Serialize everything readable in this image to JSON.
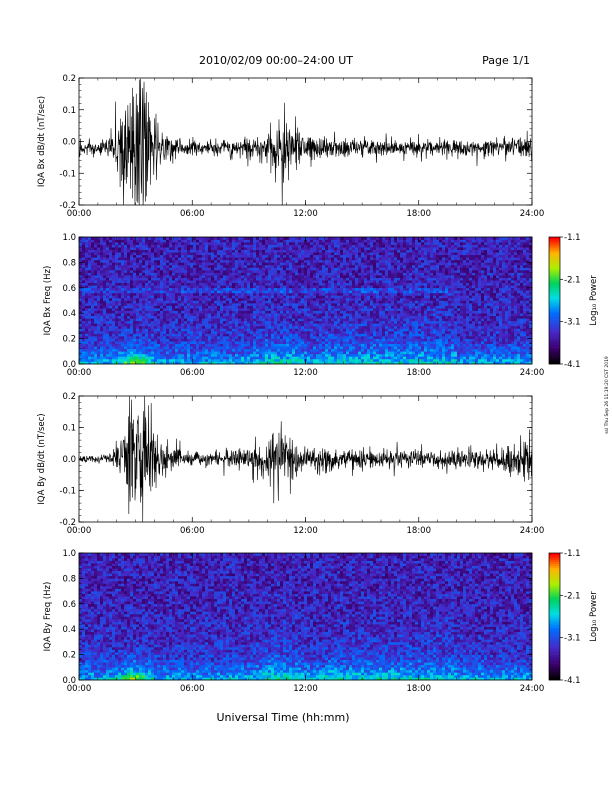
{
  "header": {
    "title": "2010/02/09  00:00–24:00 UT",
    "page": "Page 1/1"
  },
  "footer": {
    "xlabel": "Universal Time (hh:mm)",
    "side_note": "ssl Thu Sep 26 11:19:20 CST 2019"
  },
  "chart_data": [
    {
      "type": "line",
      "id": "bx_dbdt",
      "ylabel": "IQA Bx dB/dt (nT/sec)",
      "xlim": [
        0,
        24
      ],
      "ylim": [
        -0.2,
        0.2
      ],
      "yticks": [
        -0.2,
        -0.1,
        0.0,
        0.1,
        0.2
      ],
      "ytick_labels": [
        "-0.2",
        "-0.1",
        "0.0",
        "0.1",
        "0.2"
      ],
      "xticks": [
        0,
        6,
        12,
        18,
        24
      ],
      "xtick_labels": [
        "00:00",
        "06:00",
        "12:00",
        "18:00",
        "24:00"
      ],
      "series": [
        {
          "color": "#000000",
          "envelope": [
            [
              0,
              0.02
            ],
            [
              1.5,
              0.025
            ],
            [
              2.0,
              0.06
            ],
            [
              2.5,
              0.14
            ],
            [
              2.8,
              0.2
            ],
            [
              3.1,
              0.2
            ],
            [
              3.4,
              0.2
            ],
            [
              3.7,
              0.12
            ],
            [
              4.1,
              0.07
            ],
            [
              4.6,
              0.04
            ],
            [
              5.5,
              0.02
            ],
            [
              7,
              0.02
            ],
            [
              9,
              0.025
            ],
            [
              10.0,
              0.05
            ],
            [
              10.5,
              0.09
            ],
            [
              10.8,
              0.1
            ],
            [
              11.3,
              0.07
            ],
            [
              12,
              0.035
            ],
            [
              14,
              0.025
            ],
            [
              18,
              0.02
            ],
            [
              22,
              0.025
            ],
            [
              23.5,
              0.03
            ],
            [
              24,
              0.045
            ]
          ],
          "offset": -0.02
        }
      ]
    },
    {
      "type": "heatmap",
      "id": "bx_spec",
      "ylabel": "IQA Bx Freq (Hz)",
      "xlim": [
        0,
        24
      ],
      "ylim": [
        0,
        1.0
      ],
      "yticks": [
        0.0,
        0.2,
        0.4,
        0.6,
        0.8,
        1.0
      ],
      "ytick_labels": [
        "0.0",
        "0.2",
        "0.4",
        "0.6",
        "0.8",
        "1.0"
      ],
      "xticks": [
        0,
        6,
        12,
        18,
        24
      ],
      "xtick_labels": [
        "00:00",
        "06:00",
        "12:00",
        "18:00",
        "24:00"
      ],
      "colorbar": {
        "label": "Log₁₀ Power",
        "ticks": [
          -1.1,
          -2.1,
          -3.1,
          -4.1
        ],
        "tick_labels": [
          "-1.1",
          "-2.1",
          "-3.1",
          "-4.1"
        ],
        "range": [
          -4.1,
          -1.1
        ]
      },
      "features": {
        "band_hz": 0.58,
        "burst_hour": 3.0
      }
    },
    {
      "type": "line",
      "id": "by_dbdt",
      "ylabel": "IQA By dB/dt (nT/sec)",
      "xlim": [
        0,
        24
      ],
      "ylim": [
        -0.2,
        0.2
      ],
      "yticks": [
        -0.2,
        -0.1,
        0.0,
        0.1,
        0.2
      ],
      "ytick_labels": [
        "-0.2",
        "-0.1",
        "0.0",
        "0.1",
        "0.2"
      ],
      "xticks": [
        0,
        6,
        12,
        18,
        24
      ],
      "xtick_labels": [
        "00:00",
        "06:00",
        "12:00",
        "18:00",
        "24:00"
      ],
      "series": [
        {
          "color": "#000000",
          "envelope": [
            [
              0,
              0.01
            ],
            [
              1.5,
              0.015
            ],
            [
              2.0,
              0.04
            ],
            [
              2.4,
              0.1
            ],
            [
              2.8,
              0.2
            ],
            [
              3.2,
              0.2
            ],
            [
              3.6,
              0.2
            ],
            [
              3.9,
              0.12
            ],
            [
              4.3,
              0.05
            ],
            [
              5.5,
              0.02
            ],
            [
              7,
              0.02
            ],
            [
              9,
              0.03
            ],
            [
              10.0,
              0.06
            ],
            [
              10.6,
              0.085
            ],
            [
              11.2,
              0.07
            ],
            [
              12,
              0.04
            ],
            [
              14,
              0.03
            ],
            [
              18,
              0.025
            ],
            [
              22,
              0.03
            ],
            [
              23.5,
              0.04
            ],
            [
              24,
              0.06
            ]
          ],
          "offset": 0.0
        }
      ]
    },
    {
      "type": "heatmap",
      "id": "by_spec",
      "ylabel": "IQA By Freq (Hz)",
      "xlim": [
        0,
        24
      ],
      "ylim": [
        0,
        1.0
      ],
      "yticks": [
        0.0,
        0.2,
        0.4,
        0.6,
        0.8,
        1.0
      ],
      "ytick_labels": [
        "0.0",
        "0.2",
        "0.4",
        "0.6",
        "0.8",
        "1.0"
      ],
      "xticks": [
        0,
        6,
        12,
        18,
        24
      ],
      "xtick_labels": [
        "00:00",
        "06:00",
        "12:00",
        "18:00",
        "24:00"
      ],
      "colorbar": {
        "label": "Log₁₀ Power",
        "ticks": [
          -1.1,
          -2.1,
          -3.1,
          -4.1
        ],
        "tick_labels": [
          "-1.1",
          "-2.1",
          "-3.1",
          "-4.1"
        ],
        "range": [
          -4.1,
          -1.1
        ]
      },
      "features": {
        "band_hz": 0.0,
        "burst_hour": 3.0
      }
    }
  ]
}
